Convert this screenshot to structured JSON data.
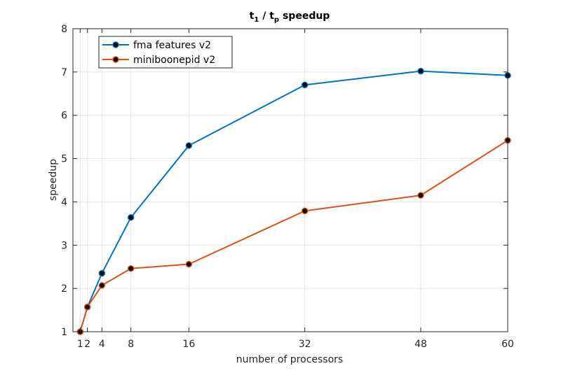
{
  "chart_data": {
    "type": "line",
    "title": {
      "base1": "t",
      "sub1": "1",
      "slash": "/",
      "base2": "t",
      "sub2": "p",
      "rest": "speedup"
    },
    "xlabel": "number of processors",
    "ylabel": "speedup",
    "xlim": [
      0,
      60
    ],
    "ylim": [
      1,
      8
    ],
    "xticks": [
      1,
      2,
      4,
      8,
      16,
      32,
      48,
      60
    ],
    "yticks": [
      1,
      2,
      3,
      4,
      5,
      6,
      7,
      8
    ],
    "grid": true,
    "legend_position": "top-left",
    "series": [
      {
        "name": "fma features v2",
        "color": "#0072BD",
        "x": [
          1,
          2,
          4,
          8,
          16,
          32,
          48,
          60
        ],
        "y": [
          1.0,
          1.57,
          2.35,
          3.64,
          5.3,
          6.7,
          7.02,
          6.92
        ]
      },
      {
        "name": "miniboonepid v2",
        "color": "#D95319",
        "x": [
          1,
          2,
          4,
          8,
          16,
          32,
          48,
          60
        ],
        "y": [
          1.0,
          1.57,
          2.07,
          2.46,
          2.56,
          3.79,
          4.15,
          5.42
        ]
      }
    ]
  }
}
